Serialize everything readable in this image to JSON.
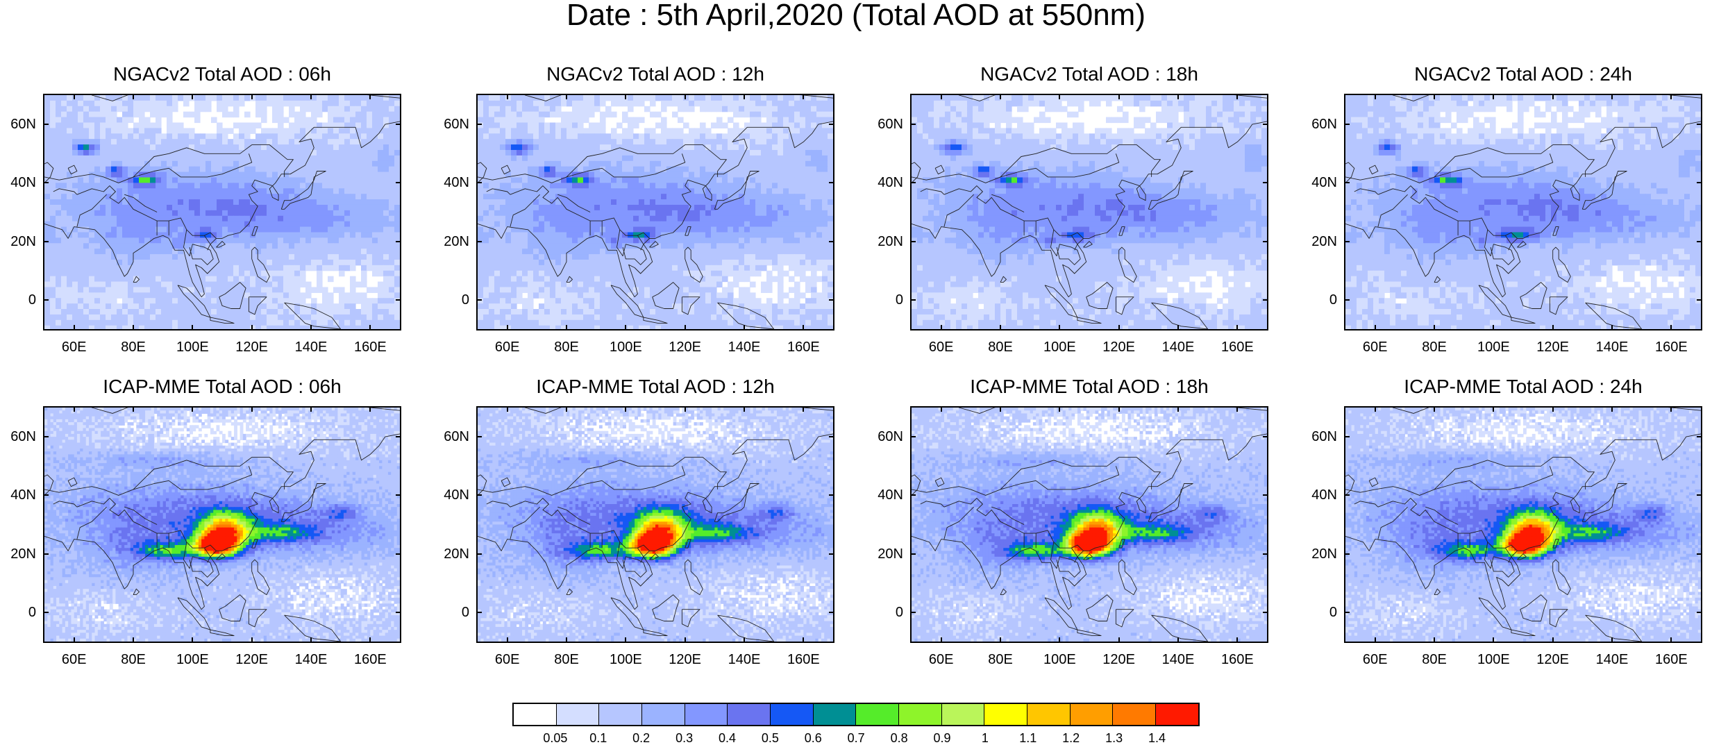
{
  "figure": {
    "title": "Date : 5th April,2020 (Total AOD at 550nm)"
  },
  "axes": {
    "lat_labels": [
      "60N",
      "40N",
      "20N",
      "0"
    ],
    "lon_labels": [
      "60E",
      "80E",
      "100E",
      "120E",
      "140E",
      "160E"
    ],
    "lat_range": [
      -10,
      70
    ],
    "lon_range": [
      50,
      170
    ]
  },
  "panels": [
    {
      "row": 0,
      "col": 0,
      "title": "NGACv2 Total AOD : 06h",
      "model": "NGACv2",
      "lead_hour": 6
    },
    {
      "row": 0,
      "col": 1,
      "title": "NGACv2 Total AOD : 12h",
      "model": "NGACv2",
      "lead_hour": 12
    },
    {
      "row": 0,
      "col": 2,
      "title": "NGACv2 Total AOD : 18h",
      "model": "NGACv2",
      "lead_hour": 18
    },
    {
      "row": 0,
      "col": 3,
      "title": "NGACv2 Total AOD : 24h",
      "model": "NGACv2",
      "lead_hour": 24
    },
    {
      "row": 1,
      "col": 0,
      "title": "ICAP-MME Total AOD : 06h",
      "model": "ICAP-MME",
      "lead_hour": 6
    },
    {
      "row": 1,
      "col": 1,
      "title": "ICAP-MME Total AOD : 12h",
      "model": "ICAP-MME",
      "lead_hour": 12
    },
    {
      "row": 1,
      "col": 2,
      "title": "ICAP-MME Total AOD : 18h",
      "model": "ICAP-MME",
      "lead_hour": 18
    },
    {
      "row": 1,
      "col": 3,
      "title": "ICAP-MME Total AOD : 24h",
      "model": "ICAP-MME",
      "lead_hour": 24
    }
  ],
  "colorbar": {
    "labels": [
      "0.05",
      "0.1",
      "0.2",
      "0.3",
      "0.4",
      "0.5",
      "0.6",
      "0.7",
      "0.8",
      "0.9",
      "1",
      "1.1",
      "1.2",
      "1.3",
      "1.4"
    ],
    "colors": [
      "#ffffff",
      "#d4deff",
      "#b6c6ff",
      "#9bb3ff",
      "#8397ff",
      "#6a74f0",
      "#1558f5",
      "#008f94",
      "#55ec2a",
      "#8ef42a",
      "#baf55a",
      "#ffff00",
      "#ffc600",
      "#ff9e00",
      "#ff7a00",
      "#ff1a00"
    ]
  }
}
